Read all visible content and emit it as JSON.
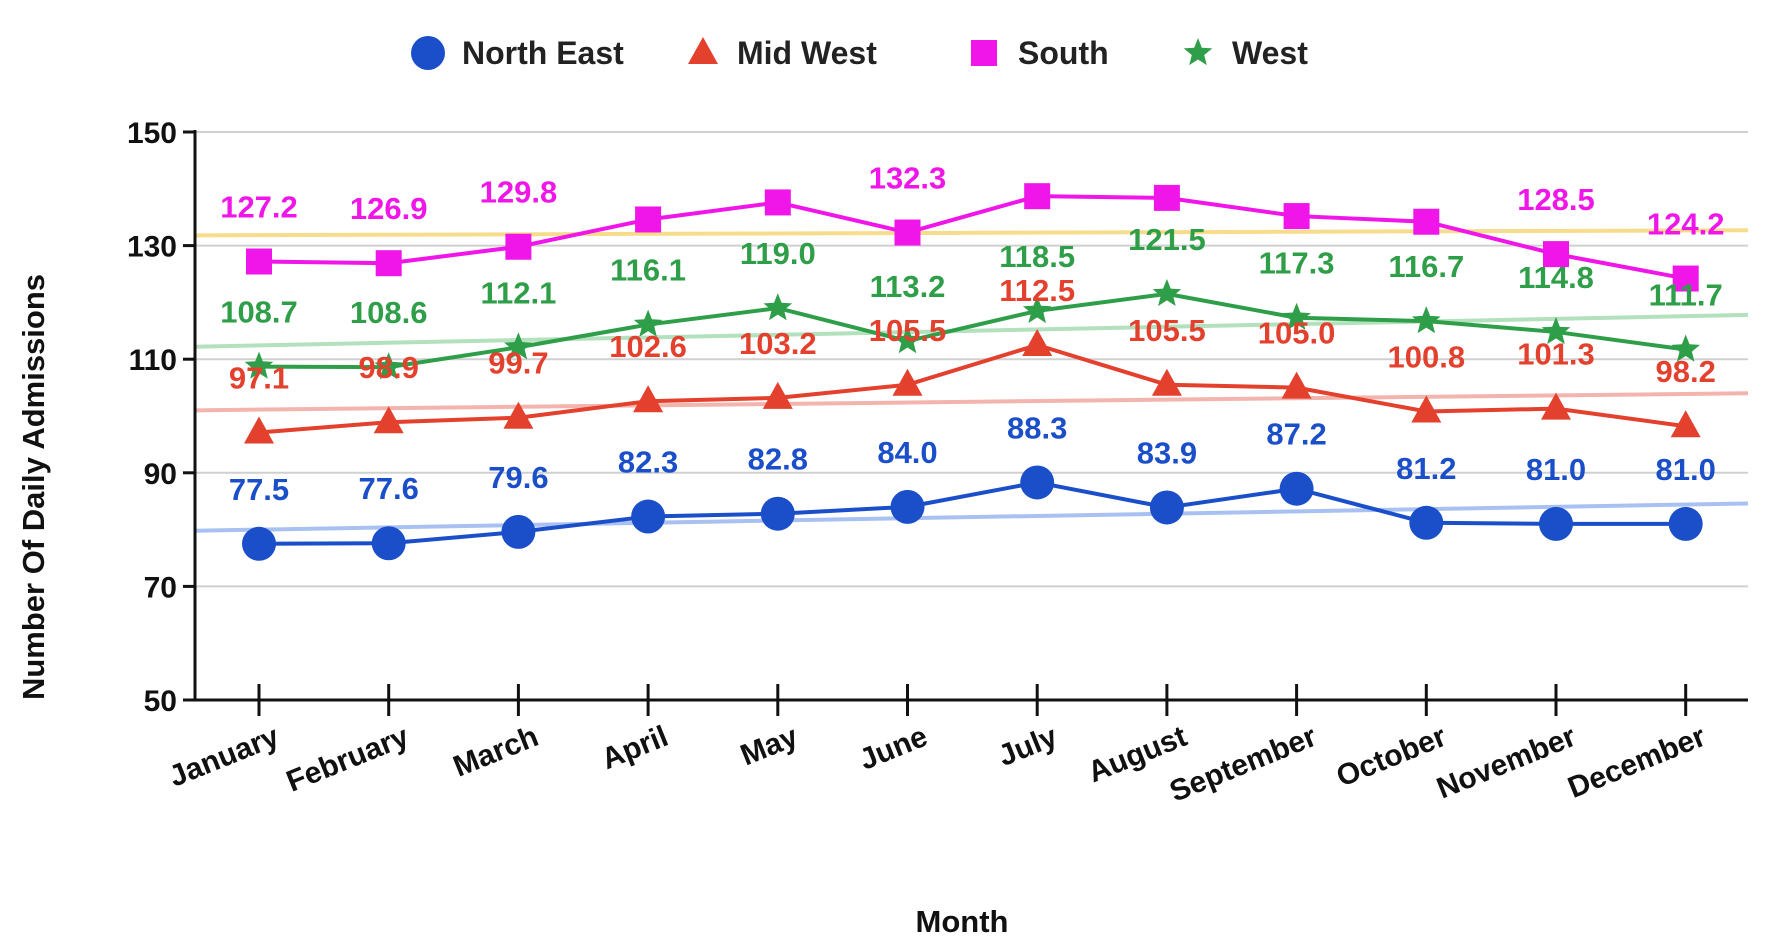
{
  "chart_data": {
    "type": "line",
    "title": "",
    "xlabel": "Month",
    "ylabel": "Number Of Daily Admissions",
    "ylim": [
      50,
      150
    ],
    "yticks": [
      "50",
      "70",
      "90",
      "110",
      "130",
      "150"
    ],
    "grid": true,
    "legend_position": "top",
    "categories": [
      "January",
      "February",
      "March",
      "April",
      "May",
      "June",
      "July",
      "August",
      "September",
      "October",
      "November",
      "December"
    ],
    "series": [
      {
        "name": "North East",
        "marker": "circle",
        "color": "#1a4fc9",
        "trend_color": "#a9c1f2",
        "values": [
          77.5,
          77.6,
          79.6,
          82.3,
          82.8,
          84.0,
          88.3,
          83.9,
          87.2,
          81.2,
          81.0,
          81.0
        ],
        "labels": [
          "77.5",
          "77.6",
          "79.6",
          "82.3",
          "82.8",
          "84.0",
          "88.3",
          "83.9",
          "87.2",
          "81.2",
          "81.0",
          "81.0"
        ],
        "trend": [
          79.8,
          84.6
        ]
      },
      {
        "name": "Mid West",
        "marker": "triangle",
        "color": "#e3402d",
        "trend_color": "#f3b4ad",
        "values": [
          97.1,
          98.9,
          99.7,
          102.6,
          103.2,
          105.5,
          112.5,
          105.5,
          105.0,
          100.8,
          101.3,
          98.2
        ],
        "labels": [
          "97.1",
          "98.9",
          "99.7",
          "102.6",
          "103.2",
          "105.5",
          "112.5",
          "105.5",
          "105.0",
          "100.8",
          "101.3",
          "98.2"
        ],
        "trend": [
          101.0,
          104.0
        ]
      },
      {
        "name": "South",
        "marker": "square",
        "color": "#f015e8",
        "trend_color": "#f7dc8c",
        "values": [
          127.2,
          126.9,
          129.8,
          134.6,
          137.6,
          132.3,
          138.7,
          138.4,
          135.2,
          134.2,
          128.5,
          124.2
        ],
        "labels": [
          "127.2",
          "126.9",
          "129.8",
          "",
          "",
          "132.3",
          "",
          "",
          "",
          "",
          "128.5",
          "124.2"
        ],
        "trend": [
          131.8,
          132.7
        ]
      },
      {
        "name": "West",
        "marker": "star",
        "color": "#2f9e49",
        "trend_color": "#b3e0bd",
        "values": [
          108.7,
          108.6,
          112.1,
          116.1,
          119.0,
          113.2,
          118.5,
          121.5,
          117.3,
          116.7,
          114.8,
          111.7
        ],
        "labels": [
          "108.7",
          "108.6",
          "112.1",
          "116.1",
          "119.0",
          "113.2",
          "118.5",
          "121.5",
          "117.3",
          "116.7",
          "114.8",
          "111.7"
        ],
        "trend": [
          112.2,
          117.8
        ]
      }
    ]
  }
}
